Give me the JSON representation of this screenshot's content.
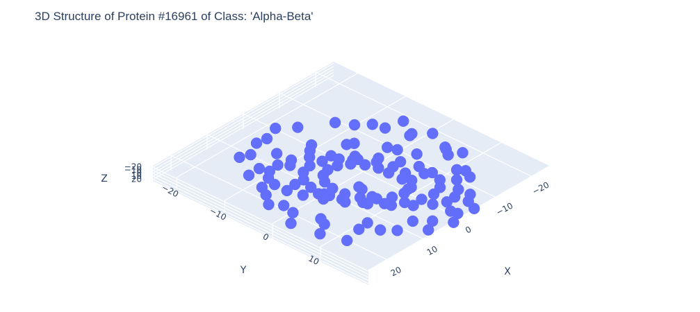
{
  "title": "3D Structure of Protein #16961 of Class: 'Alpha-Beta'",
  "colors": {
    "marker": "#636efa",
    "pane": "#e5ecf6",
    "grid": "#ffffff",
    "text": "#2a3f5f",
    "background": "#ffffff"
  },
  "chart_data": {
    "type": "scatter",
    "mode": "3d-markers",
    "title": "3D Structure of Protein #16961 of Class: 'Alpha-Beta'",
    "xlabel": "X",
    "ylabel": "Y",
    "zlabel": "Z",
    "x_ticks": [
      "−20",
      "−10",
      "0",
      "10",
      "20"
    ],
    "y_ticks": [
      "−20",
      "−10",
      "0",
      "10"
    ],
    "z_ticks": [
      "20",
      "10",
      "0",
      "−10",
      "−20"
    ],
    "xlim": [
      -25,
      25
    ],
    "ylim": [
      -25,
      20
    ],
    "zlim": [
      -25,
      25
    ],
    "grid": true,
    "legend": "none",
    "series": [
      {
        "points": [
          [
            -15.2,
            8.1,
            12.3
          ],
          [
            -12.4,
            10.2,
            9.8
          ],
          [
            -9.8,
            12.5,
            6.1
          ],
          [
            -7.1,
            13.8,
            2.4
          ],
          [
            -4.5,
            14.1,
            -1.5
          ],
          [
            -1.8,
            13.2,
            -5.2
          ],
          [
            1.2,
            11.4,
            -8.1
          ],
          [
            4.1,
            9.0,
            -10.5
          ],
          [
            6.8,
            6.1,
            -11.8
          ],
          [
            9.2,
            3.2,
            -12.1
          ],
          [
            11.1,
            0.1,
            -11.2
          ],
          [
            12.5,
            -3.1,
            -9.1
          ],
          [
            13.1,
            -6.0,
            -6.2
          ],
          [
            12.8,
            -8.8,
            -2.9
          ],
          [
            11.6,
            -11.0,
            0.8
          ],
          [
            9.4,
            -12.4,
            4.2
          ],
          [
            6.5,
            -12.9,
            7.3
          ],
          [
            3.3,
            -12.5,
            9.9
          ],
          [
            0.1,
            -11.1,
            11.8
          ],
          [
            -3.1,
            -9.0,
            12.9
          ],
          [
            -6.0,
            -6.2,
            13.1
          ],
          [
            -8.4,
            -3.1,
            12.2
          ],
          [
            -10.1,
            0.2,
            10.4
          ],
          [
            -11.0,
            3.4,
            7.9
          ],
          [
            -10.8,
            6.3,
            4.8
          ],
          [
            -9.6,
            8.8,
            1.5
          ],
          [
            -7.4,
            10.5,
            -1.9
          ],
          [
            -4.6,
            11.3,
            -5.0
          ],
          [
            -1.5,
            11.1,
            -7.6
          ],
          [
            1.6,
            9.9,
            -9.4
          ],
          [
            4.5,
            7.9,
            -10.2
          ],
          [
            6.9,
            5.2,
            -10.0
          ],
          [
            8.6,
            2.1,
            -8.7
          ],
          [
            9.3,
            -1.1,
            -6.5
          ],
          [
            9.0,
            -4.1,
            -3.6
          ],
          [
            7.7,
            -6.6,
            -0.4
          ],
          [
            5.5,
            -8.3,
            2.7
          ],
          [
            2.8,
            -9.0,
            5.4
          ],
          [
            -0.1,
            -8.6,
            7.4
          ],
          [
            -2.9,
            -7.2,
            8.5
          ],
          [
            -5.2,
            -5.0,
            8.6
          ],
          [
            -6.8,
            -2.3,
            7.7
          ],
          [
            -7.5,
            0.6,
            6.0
          ],
          [
            -7.2,
            3.4,
            3.7
          ],
          [
            -5.9,
            5.7,
            1.1
          ],
          [
            -3.8,
            7.2,
            -1.5
          ],
          [
            -1.2,
            7.7,
            -3.8
          ],
          [
            1.5,
            7.2,
            -5.5
          ],
          [
            3.9,
            5.8,
            -6.4
          ],
          [
            5.7,
            3.7,
            -6.4
          ],
          [
            6.6,
            1.2,
            -5.5
          ],
          [
            6.6,
            -1.4,
            -3.9
          ],
          [
            5.7,
            -3.7,
            -1.8
          ],
          [
            4.0,
            -5.3,
            0.5
          ],
          [
            1.8,
            -6.0,
            2.6
          ],
          [
            -0.6,
            -5.8,
            4.2
          ],
          [
            -2.8,
            -4.7,
            5.1
          ],
          [
            -4.4,
            -2.9,
            5.2
          ],
          [
            -5.2,
            -0.7,
            4.5
          ],
          [
            -5.1,
            1.5,
            3.1
          ],
          [
            -18.5,
            -4.2,
            15.1
          ],
          [
            -17.1,
            -8.3,
            11.9
          ],
          [
            -14.2,
            -12.5,
            13.8
          ],
          [
            -19.4,
            2.5,
            8.6
          ],
          [
            -16.8,
            5.1,
            -3.2
          ],
          [
            -13.5,
            9.4,
            -9.7
          ],
          [
            -8.2,
            15.8,
            9.1
          ],
          [
            -3.4,
            17.2,
            5.5
          ],
          [
            2.1,
            16.1,
            1.2
          ],
          [
            8.4,
            13.5,
            8.8
          ],
          [
            13.2,
            9.1,
            5.6
          ],
          [
            16.5,
            4.4,
            2.1
          ],
          [
            17.8,
            -1.2,
            -2.4
          ],
          [
            16.9,
            -7.5,
            -6.1
          ],
          [
            14.1,
            -13.2,
            -8.8
          ],
          [
            8.7,
            -16.9,
            -11.4
          ],
          [
            2.6,
            -18.1,
            -13.2
          ],
          [
            -4.2,
            -16.8,
            -14.0
          ],
          [
            -10.3,
            -13.6,
            -12.1
          ],
          [
            -14.8,
            -9.2,
            -9.0
          ],
          [
            -17.6,
            -3.1,
            -5.2
          ],
          [
            -18.2,
            3.6,
            -0.8
          ],
          [
            -15.4,
            9.8,
            3.5
          ],
          [
            -10.7,
            14.3,
            14.6
          ],
          [
            -4.1,
            15.2,
            17.8
          ],
          [
            3.2,
            12.8,
            19.1
          ],
          [
            9.5,
            8.1,
            17.2
          ],
          [
            14.6,
            2.2,
            13.9
          ],
          [
            16.1,
            -4.4,
            10.1
          ],
          [
            13.9,
            -10.6,
            12.4
          ],
          [
            9.1,
            -14.8,
            15.5
          ],
          [
            2.8,
            -15.9,
            17.6
          ],
          [
            -3.9,
            -13.7,
            18.4
          ],
          [
            -9.6,
            -9.1,
            17.3
          ],
          [
            -13.2,
            -2.8,
            14.9
          ],
          [
            -12.1,
            2.1,
            -15.6
          ],
          [
            -7.8,
            6.9,
            -17.2
          ],
          [
            -1.6,
            8.2,
            -18.4
          ],
          [
            4.9,
            5.6,
            -18.1
          ],
          [
            9.8,
            0.4,
            -16.0
          ],
          [
            11.4,
            -5.6,
            -17.9
          ],
          [
            7.2,
            -9.8,
            -19.6
          ],
          [
            0.9,
            -10.4,
            -20.3
          ],
          [
            -5.4,
            -7.5,
            -19.8
          ],
          [
            -9.9,
            -2.4,
            -18.2
          ],
          [
            20.1,
            6.2,
            -4.8
          ],
          [
            21.4,
            1.1,
            -9.3
          ],
          [
            19.6,
            -4.9,
            -13.1
          ],
          [
            18.2,
            10.4,
            -1.5
          ],
          [
            -20.3,
            -6.9,
            0.6
          ],
          [
            -21.1,
            -1.4,
            4.9
          ],
          [
            -20.4,
            5.4,
            11.8
          ],
          [
            0.4,
            19.2,
            -6.4
          ],
          [
            5.9,
            18.1,
            -10.8
          ],
          [
            -6.1,
            18.6,
            -2.7
          ],
          [
            3.5,
            -19.6,
            6.9
          ],
          [
            -2.4,
            -20.1,
            2.3
          ],
          [
            9.8,
            -18.4,
            1.1
          ],
          [
            -12.9,
            12.6,
            -14.4
          ],
          [
            12.3,
            12.9,
            -14.9
          ],
          [
            -6.6,
            3.2,
            20.4
          ],
          [
            1.1,
            0.6,
            21.3
          ],
          [
            7.8,
            -3.4,
            20.6
          ],
          [
            -1.9,
            -3.6,
            -22.1
          ],
          [
            4.3,
            2.4,
            -21.8
          ]
        ]
      }
    ]
  }
}
